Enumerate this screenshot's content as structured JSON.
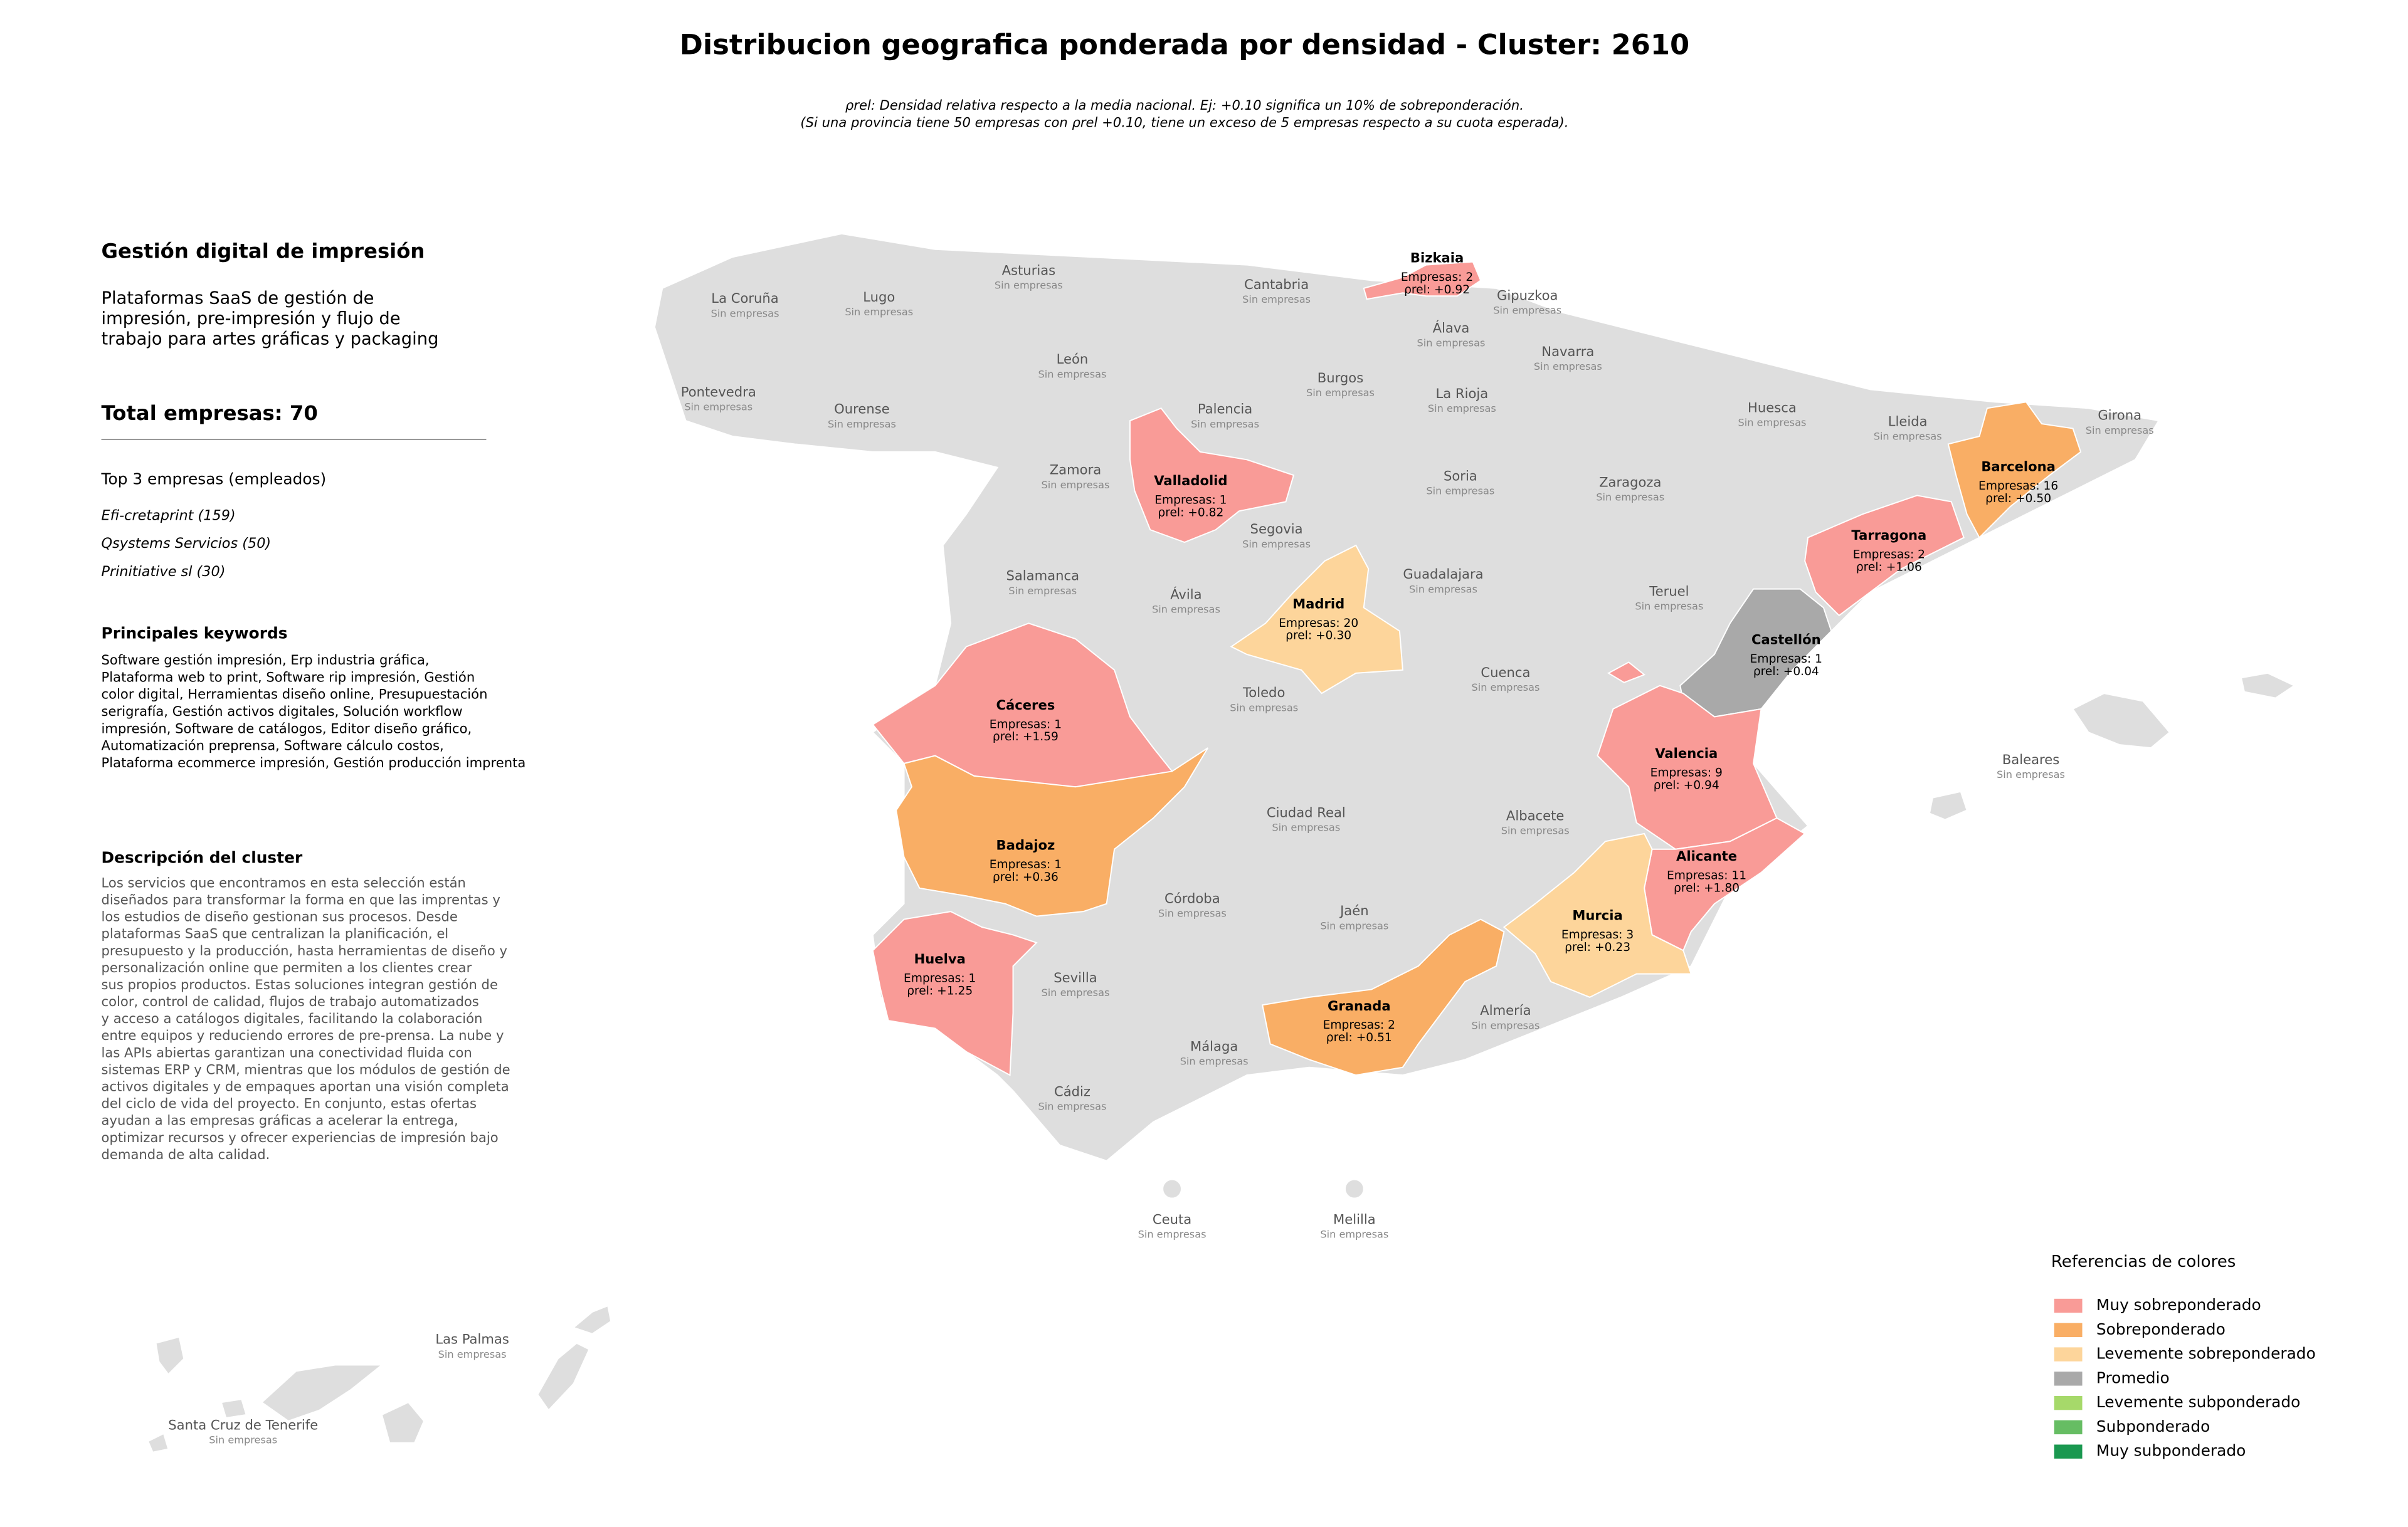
{
  "header": {
    "title": "Distribucion geografica ponderada por densidad - Cluster: 2610",
    "subtitle": [
      "ρrel: Densidad relativa respecto a la media nacional. Ej: +0.10 significa un 10% de sobreponderación.",
      "(Si una provincia tiene 50 empresas con ρrel +0.10, tiene un exceso de 5 empresas respecto a su cuota esperada)."
    ]
  },
  "sidebar": {
    "heading": "Gestión digital de impresión",
    "summary": [
      "Plataformas SaaS de gestión de",
      "impresión, pre-impresión y flujo de",
      "trabajo para artes gráficas y packaging"
    ],
    "total": "Total empresas: 70",
    "top_heading": "Top 3 empresas (empleados)",
    "top": [
      "Efi-cretaprint (159)",
      "Qsystems Servicios (50)",
      "Prinitiative sl (30)"
    ],
    "keywords_heading": "Principales keywords",
    "keywords": [
      "Software gestión impresión, Erp industria gráfica,",
      "Plataforma web to print, Software rip impresión, Gestión",
      "color digital, Herramientas diseño online, Presupuestación",
      "serigrafía, Gestión activos digitales, Solución workflow",
      "impresión, Software de catálogos, Editor diseño gráfico,",
      "Automatización preprensa, Software cálculo costos,",
      "Plataforma ecommerce impresión, Gestión producción imprenta"
    ],
    "description_heading": "Descripción del cluster",
    "description": [
      "Los servicios que encontramos en esta selección están",
      "diseñados para transformar la forma en que las imprentas y",
      "los estudios de diseño gestionan sus procesos. Desde",
      "plataformas SaaS que centralizan la planificación, el",
      "presupuesto y la producción, hasta herramientas de diseño y",
      "personalización online que permiten a los clientes crear",
      "sus propios productos. Estas soluciones integran gestión de",
      "color, control de calidad, flujos de trabajo automatizados",
      "y acceso a catálogos digitales, facilitando la colaboración",
      "entre equipos y reduciendo errores de pre-prensa. La nube y",
      "las APIs abiertas garantizan una conectividad fluida con",
      "sistemas ERP y CRM, mientras que los módulos de gestión de",
      "activos digitales y de empaques aportan una visión completa",
      "del ciclo de vida del proyecto. En conjunto, estas ofertas",
      "ayudan a las empresas gráficas a acelerar la entrega,",
      "optimizar recursos y ofrecer experiencias de impresión bajo",
      "demanda de alta calidad."
    ]
  },
  "provinces": [
    {
      "name": "Bizkaia",
      "empresas": "Empresas: 2",
      "rho": "ρrel: +0.92",
      "color": "#f99b97"
    },
    {
      "name": "Valladolid",
      "empresas": "Empresas: 1",
      "rho": "ρrel: +0.82",
      "color": "#f99b97"
    },
    {
      "name": "Barcelona",
      "empresas": "Empresas: 16",
      "rho": "ρrel: +0.50",
      "color": "#f9ae65"
    },
    {
      "name": "Tarragona",
      "empresas": "Empresas: 2",
      "rho": "ρrel: +1.06",
      "color": "#f99b97"
    },
    {
      "name": "Madrid",
      "empresas": "Empresas: 20",
      "rho": "ρrel: +0.30",
      "color": "#fdd59b"
    },
    {
      "name": "Castellón",
      "empresas": "Empresas: 1",
      "rho": "ρrel: +0.04",
      "color": "#a9a9a9"
    },
    {
      "name": "Cáceres",
      "empresas": "Empresas: 1",
      "rho": "ρrel: +1.59",
      "color": "#f99b97"
    },
    {
      "name": "Valencia",
      "empresas": "Empresas: 9",
      "rho": "ρrel: +0.94",
      "color": "#f99b97"
    },
    {
      "name": "Badajoz",
      "empresas": "Empresas: 1",
      "rho": "ρrel: +0.36",
      "color": "#f9ae65"
    },
    {
      "name": "Alicante",
      "empresas": "Empresas: 11",
      "rho": "ρrel: +1.80",
      "color": "#f99b97"
    },
    {
      "name": "Murcia",
      "empresas": "Empresas: 3",
      "rho": "ρrel: +0.23",
      "color": "#fdd59b"
    },
    {
      "name": "Huelva",
      "empresas": "Empresas: 1",
      "rho": "ρrel: +1.25",
      "color": "#f99b97"
    },
    {
      "name": "Granada",
      "empresas": "Empresas: 2",
      "rho": "ρrel: +0.51",
      "color": "#f9ae65"
    },
    {
      "name": "La Coruña",
      "status": "Sin empresas"
    },
    {
      "name": "Lugo",
      "status": "Sin empresas"
    },
    {
      "name": "Asturias",
      "status": "Sin empresas"
    },
    {
      "name": "Cantabria",
      "status": "Sin empresas"
    },
    {
      "name": "Gipuzkoa",
      "status": "Sin empresas"
    },
    {
      "name": "Álava",
      "status": "Sin empresas"
    },
    {
      "name": "Navarra",
      "status": "Sin empresas"
    },
    {
      "name": "Pontevedra",
      "status": "Sin empresas"
    },
    {
      "name": "Ourense",
      "status": "Sin empresas"
    },
    {
      "name": "León",
      "status": "Sin empresas"
    },
    {
      "name": "Palencia",
      "status": "Sin empresas"
    },
    {
      "name": "Burgos",
      "status": "Sin empresas"
    },
    {
      "name": "La Rioja",
      "status": "Sin empresas"
    },
    {
      "name": "Huesca",
      "status": "Sin empresas"
    },
    {
      "name": "Lleida",
      "status": "Sin empresas"
    },
    {
      "name": "Girona",
      "status": "Sin empresas"
    },
    {
      "name": "Zamora",
      "status": "Sin empresas"
    },
    {
      "name": "Soria",
      "status": "Sin empresas"
    },
    {
      "name": "Zaragoza",
      "status": "Sin empresas"
    },
    {
      "name": "Segovia",
      "status": "Sin empresas"
    },
    {
      "name": "Salamanca",
      "status": "Sin empresas"
    },
    {
      "name": "Ávila",
      "status": "Sin empresas"
    },
    {
      "name": "Guadalajara",
      "status": "Sin empresas"
    },
    {
      "name": "Teruel",
      "status": "Sin empresas"
    },
    {
      "name": "Cuenca",
      "status": "Sin empresas"
    },
    {
      "name": "Toledo",
      "status": "Sin empresas"
    },
    {
      "name": "Baleares",
      "status": "Sin empresas"
    },
    {
      "name": "Ciudad Real",
      "status": "Sin empresas"
    },
    {
      "name": "Albacete",
      "status": "Sin empresas"
    },
    {
      "name": "Córdoba",
      "status": "Sin empresas"
    },
    {
      "name": "Jaén",
      "status": "Sin empresas"
    },
    {
      "name": "Sevilla",
      "status": "Sin empresas"
    },
    {
      "name": "Almería",
      "status": "Sin empresas"
    },
    {
      "name": "Málaga",
      "status": "Sin empresas"
    },
    {
      "name": "Cádiz",
      "status": "Sin empresas"
    },
    {
      "name": "Ceuta",
      "status": "Sin empresas"
    },
    {
      "name": "Melilla",
      "status": "Sin empresas"
    },
    {
      "name": "Las Palmas",
      "status": "Sin empresas"
    },
    {
      "name": "Santa Cruz de Tenerife",
      "status": "Sin empresas"
    }
  ],
  "legend": {
    "title": "Referencias de colores",
    "items": [
      {
        "label": "Muy sobreponderado",
        "color": "#f99b97"
      },
      {
        "label": "Sobreponderado",
        "color": "#f9ae65"
      },
      {
        "label": "Levemente sobreponderado",
        "color": "#fdd59b"
      },
      {
        "label": "Promedio",
        "color": "#a9a9a9"
      },
      {
        "label": "Levemente subponderado",
        "color": "#a6d96a"
      },
      {
        "label": "Subponderado",
        "color": "#66bd63"
      },
      {
        "label": "Muy subponderado",
        "color": "#1a9850"
      }
    ]
  }
}
